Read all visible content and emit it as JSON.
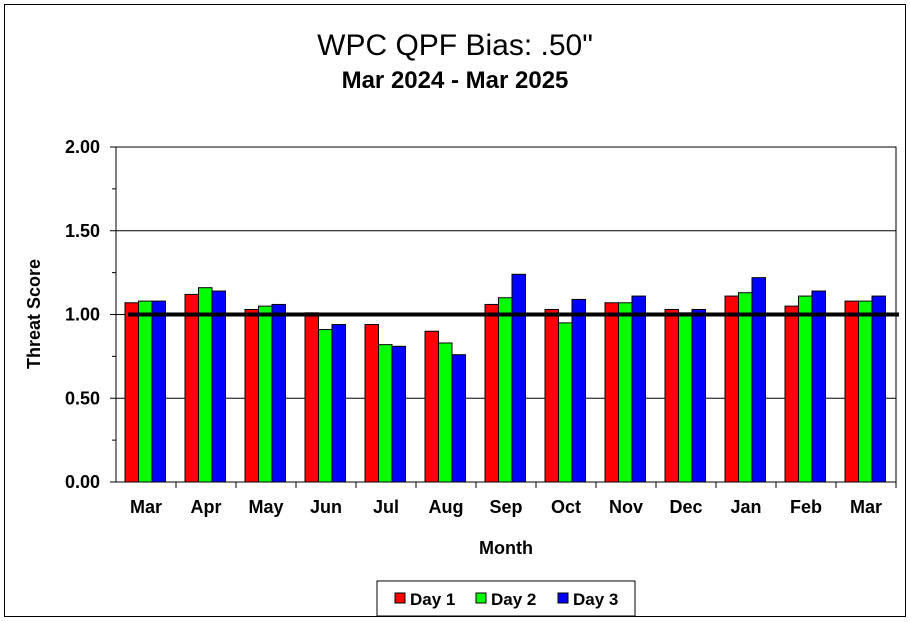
{
  "chart_data": {
    "type": "bar",
    "title": "WPC QPF Bias:  .50\"",
    "subtitle": "Mar 2024 - Mar 2025",
    "xlabel": "Month",
    "ylabel": "Threat Score",
    "ylim": [
      0,
      2
    ],
    "yticks": [
      "0.00",
      "0.50",
      "1.00",
      "1.50",
      "2.00"
    ],
    "reference_line": 1.0,
    "grid": "horizontal major",
    "legend_position": "bottom",
    "categories": [
      "Mar",
      "Apr",
      "May",
      "Jun",
      "Jul",
      "Aug",
      "Sep",
      "Oct",
      "Nov",
      "Dec",
      "Jan",
      "Feb",
      "Mar"
    ],
    "series": [
      {
        "name": "Day 1",
        "color": "#ff0000",
        "values": [
          1.07,
          1.12,
          1.03,
          1.01,
          0.94,
          0.9,
          1.06,
          1.03,
          1.07,
          1.03,
          1.11,
          1.05,
          1.08
        ]
      },
      {
        "name": "Day 2",
        "color": "#00ff00",
        "values": [
          1.08,
          1.16,
          1.05,
          0.91,
          0.82,
          0.83,
          1.1,
          0.95,
          1.07,
          1.01,
          1.13,
          1.11,
          1.08
        ]
      },
      {
        "name": "Day 3",
        "color": "#0000ff",
        "values": [
          1.08,
          1.14,
          1.06,
          0.94,
          0.81,
          0.76,
          1.24,
          1.09,
          1.11,
          1.03,
          1.22,
          1.14,
          1.11
        ]
      }
    ]
  }
}
